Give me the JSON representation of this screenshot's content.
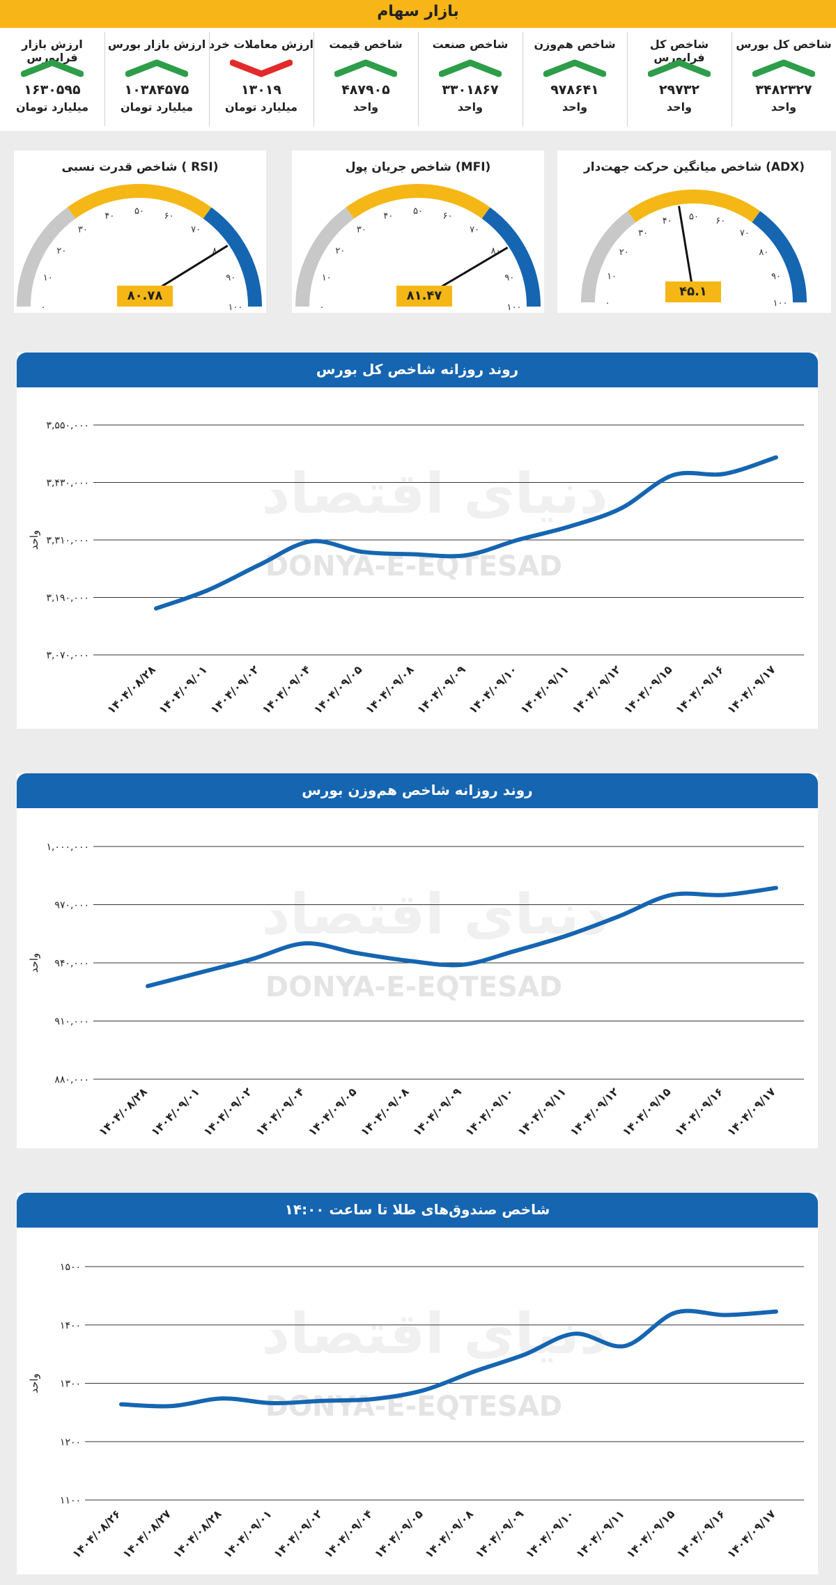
{
  "header": {
    "title": "بازار سهام"
  },
  "colors": {
    "up": "#2e9d4a",
    "down": "#e32a2a",
    "accent": "#f5b716",
    "blue": "#1565b1",
    "grey": "#c8c8c8"
  },
  "kpis": [
    {
      "label": "شاخص کل بورس",
      "value": "۳۴۸۲۳۲۷",
      "unit": "واحد",
      "direction": "up"
    },
    {
      "label": "شاخص کل فرابورس",
      "value": "۲۹۷۳۲",
      "unit": "واحد",
      "direction": "up"
    },
    {
      "label": "شاخص هم‌وزن",
      "value": "۹۷۸۶۴۱",
      "unit": "واحد",
      "direction": "up"
    },
    {
      "label": "شاخص صنعت",
      "value": "۳۳۰۱۸۶۷",
      "unit": "واحد",
      "direction": "up"
    },
    {
      "label": "شاخص قیمت",
      "value": "۴۸۷۹۰۵",
      "unit": "واحد",
      "direction": "up"
    },
    {
      "label": "ارزش معاملات خرد",
      "value": "۱۳۰۱۹",
      "unit": "میلیارد تومان",
      "direction": "down"
    },
    {
      "label": "ارزش بازار بورس",
      "value": "۱۰۳۸۴۵۷۵",
      "unit": "میلیارد تومان",
      "direction": "up"
    },
    {
      "label": "ارزش بازار فرابورس",
      "value": "۱۶۳۰۵۹۵",
      "unit": "میلیارد تومان",
      "direction": "up"
    }
  ],
  "gauges": [
    {
      "title": "شاخص قدرت نسبی ( RSI)",
      "value": 80.78,
      "label": "۸۰.۷۸",
      "ticks": [
        "۰",
        "۱۰",
        "۲۰",
        "۳۰",
        "۴۰",
        "۵۰",
        "۶۰",
        "۷۰",
        "۸۰",
        "۹۰",
        "۱۰۰"
      ]
    },
    {
      "title": "شاخص جریان پول (MFI)",
      "value": 81.47,
      "label": "۸۱.۴۷",
      "ticks": [
        "۰",
        "۱۰",
        "۲۰",
        "۳۰",
        "۴۰",
        "۵۰",
        "۶۰",
        "۷۰",
        "۸۰",
        "۹۰",
        "۱۰۰"
      ]
    },
    {
      "title": "شاخص میانگین حرکت جهت‌دار (ADX)",
      "value": 45.1,
      "label": "۴۵.۱",
      "ticks": [
        "۰",
        "۱۰",
        "۲۰",
        "۳۰",
        "۴۰",
        "۵۰",
        "۶۰",
        "۷۰",
        "۸۰",
        "۹۰",
        "۱۰۰"
      ]
    }
  ],
  "watermark": {
    "brand": "DONYA-E-EQTESAD",
    "logo_text": "دنیای اقتصاد"
  },
  "chart_data": [
    {
      "type": "line",
      "title": "روند روزانه شاخص کل بورس",
      "ylabel": "واحد",
      "ylim": [
        3070000,
        3550000
      ],
      "yticks": [
        3070000,
        3190000,
        3310000,
        3430000,
        3550000
      ],
      "ytick_labels": [
        "۳,۰۷۰,۰۰۰",
        "۳,۱۹۰,۰۰۰",
        "۳,۳۱۰,۰۰۰",
        "۳,۴۳۰,۰۰۰",
        "۳,۵۵۰,۰۰۰"
      ],
      "categories": [
        "۱۴۰۴/۰۸/۲۸",
        "۱۴۰۴/۰۹/۰۱",
        "۱۴۰۴/۰۹/۰۲",
        "۱۴۰۴/۰۹/۰۴",
        "۱۴۰۴/۰۹/۰۵",
        "۱۴۰۴/۰۹/۰۸",
        "۱۴۰۴/۰۹/۰۹",
        "۱۴۰۴/۰۹/۱۰",
        "۱۴۰۴/۰۹/۱۱",
        "۱۴۰۴/۰۹/۱۲",
        "۱۴۰۴/۰۹/۱۵",
        "۱۴۰۴/۰۹/۱۶",
        "۱۴۰۴/۰۹/۱۷"
      ],
      "values": [
        3167000,
        3205000,
        3258000,
        3307000,
        3285000,
        3280000,
        3278000,
        3310000,
        3338000,
        3376000,
        3445000,
        3448000,
        3482327
      ]
    },
    {
      "type": "line",
      "title": "روند روزانه شاخص هم‌وزن بورس",
      "ylabel": "واحد",
      "ylim": [
        880000,
        1000000
      ],
      "yticks": [
        880000,
        910000,
        940000,
        970000,
        1000000
      ],
      "ytick_labels": [
        "۸۸۰,۰۰۰",
        "۹۱۰,۰۰۰",
        "۹۴۰,۰۰۰",
        "۹۷۰,۰۰۰",
        "۱,۰۰۰,۰۰۰"
      ],
      "categories": [
        "۱۴۰۴/۰۸/۲۸",
        "۱۴۰۴/۰۹/۰۱",
        "۱۴۰۴/۰۹/۰۲",
        "۱۴۰۴/۰۹/۰۴",
        "۱۴۰۴/۰۹/۰۵",
        "۱۴۰۴/۰۹/۰۸",
        "۱۴۰۴/۰۹/۰۹",
        "۱۴۰۴/۰۹/۱۰",
        "۱۴۰۴/۰۹/۱۱",
        "۱۴۰۴/۰۹/۱۲",
        "۱۴۰۴/۰۹/۱۵",
        "۱۴۰۴/۰۹/۱۶",
        "۱۴۰۴/۰۹/۱۷"
      ],
      "values": [
        928000,
        935000,
        942000,
        950000,
        945000,
        941000,
        939000,
        946000,
        954000,
        964000,
        975000,
        975000,
        978641
      ]
    },
    {
      "type": "line",
      "title": "شاخص صندوق‌های طلا تا ساعت ۱۴:۰۰",
      "ylabel": "واحد",
      "ylim": [
        1100,
        1500
      ],
      "yticks": [
        1100,
        1200,
        1300,
        1400,
        1500
      ],
      "ytick_labels": [
        "۱۱۰۰",
        "۱۲۰۰",
        "۱۳۰۰",
        "۱۴۰۰",
        "۱۵۰۰"
      ],
      "categories": [
        "۱۴۰۴/۰۸/۲۶",
        "۱۴۰۴/۰۸/۲۷",
        "۱۴۰۴/۰۸/۲۸",
        "۱۴۰۴/۰۹/۰۱",
        "۱۴۰۴/۰۹/۰۲",
        "۱۴۰۴/۰۹/۰۴",
        "۱۴۰۴/۰۹/۰۵",
        "۱۴۰۴/۰۹/۰۸",
        "۱۴۰۴/۰۹/۰۹",
        "۱۴۰۴/۰۹/۱۰",
        "۱۴۰۴/۰۹/۱۱",
        "۱۴۰۴/۰۹/۱۵",
        "۱۴۰۴/۰۹/۱۶",
        "۱۴۰۴/۰۹/۱۷"
      ],
      "values": [
        1264,
        1261,
        1274,
        1266,
        1270,
        1273,
        1288,
        1320,
        1349,
        1385,
        1364,
        1421,
        1417,
        1423
      ]
    }
  ]
}
